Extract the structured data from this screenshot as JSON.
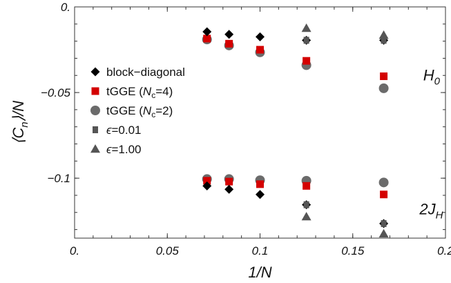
{
  "chart_data": {
    "type": "scatter",
    "title": "",
    "xlabel": "1/N",
    "ylabel": "⟨C_n⟩/N",
    "xlim": [
      0,
      0.2
    ],
    "ylim": [
      -0.135,
      0
    ],
    "x_ticks": [
      0,
      0.05,
      0.1,
      0.15,
      0.2
    ],
    "x_tick_labels": [
      "0.",
      "0.05",
      "0.1",
      "0.15",
      "0.2"
    ],
    "y_ticks": [
      0,
      -0.05,
      -0.1
    ],
    "y_tick_labels": [
      "0.",
      "−0.05",
      "−0.1"
    ],
    "grid": false,
    "legend_position": "left",
    "annotations": [
      {
        "text_main": "H",
        "text_sub": "0",
        "x": 0.188,
        "y": -0.043
      },
      {
        "text_main": "2J",
        "text_sub": "H",
        "x": 0.186,
        "y": -0.121
      }
    ],
    "series": [
      {
        "name": "block−diagonal",
        "name_main": "block−diagonal",
        "name_sub": "",
        "name_tail": "",
        "marker": "diamond",
        "color": "#000000",
        "points": [
          [
            0.0714,
            -0.0145
          ],
          [
            0.0833,
            -0.016
          ],
          [
            0.1,
            -0.0175
          ],
          [
            0.125,
            -0.0195
          ],
          [
            0.1667,
            -0.0195
          ],
          [
            0.0714,
            -0.1045
          ],
          [
            0.0833,
            -0.1065
          ],
          [
            0.1,
            -0.1095
          ],
          [
            0.125,
            -0.1155
          ],
          [
            0.1667,
            -0.1265
          ]
        ]
      },
      {
        "name": "tGGE (Nc=4)",
        "name_main": "tGGE (",
        "name_sub": "c",
        "name_tail": "=4)",
        "name_italic": "N",
        "marker": "square",
        "color": "#d40000",
        "points": [
          [
            0.0714,
            -0.0185
          ],
          [
            0.0833,
            -0.0215
          ],
          [
            0.1,
            -0.025
          ],
          [
            0.125,
            -0.0315
          ],
          [
            0.1667,
            -0.0405
          ],
          [
            0.0714,
            -0.1015
          ],
          [
            0.0833,
            -0.102
          ],
          [
            0.1,
            -0.1035
          ],
          [
            0.125,
            -0.1045
          ],
          [
            0.1667,
            -0.1095
          ]
        ]
      },
      {
        "name": "tGGE (Nc=2)",
        "name_main": "tGGE (",
        "name_sub": "c",
        "name_tail": "=2)",
        "name_italic": "N",
        "marker": "circle",
        "color": "#6b6b6b",
        "points": [
          [
            0.0714,
            -0.019
          ],
          [
            0.0833,
            -0.0225
          ],
          [
            0.1,
            -0.0265
          ],
          [
            0.125,
            -0.034
          ],
          [
            0.1667,
            -0.0475
          ],
          [
            0.0714,
            -0.1005
          ],
          [
            0.0833,
            -0.1005
          ],
          [
            0.1,
            -0.1012
          ],
          [
            0.125,
            -0.1015
          ],
          [
            0.1667,
            -0.1025
          ]
        ]
      },
      {
        "name": "ϵ=0.01",
        "name_main": "=0.01",
        "name_sub": "",
        "name_tail": "",
        "name_italic": "ϵ",
        "marker": "square-small",
        "color": "#555555",
        "points": [
          [
            0.125,
            -0.0195
          ],
          [
            0.1667,
            -0.0195
          ],
          [
            0.125,
            -0.1155
          ],
          [
            0.1667,
            -0.1265
          ]
        ]
      },
      {
        "name": "ϵ=1.00",
        "name_main": "=1.00",
        "name_sub": "",
        "name_tail": "",
        "name_italic": "ϵ",
        "marker": "triangle",
        "color": "#555555",
        "points": [
          [
            0.125,
            -0.0125
          ],
          [
            0.1667,
            -0.0165
          ],
          [
            0.125,
            -0.1225
          ],
          [
            0.1667,
            -0.1325
          ]
        ]
      }
    ]
  }
}
